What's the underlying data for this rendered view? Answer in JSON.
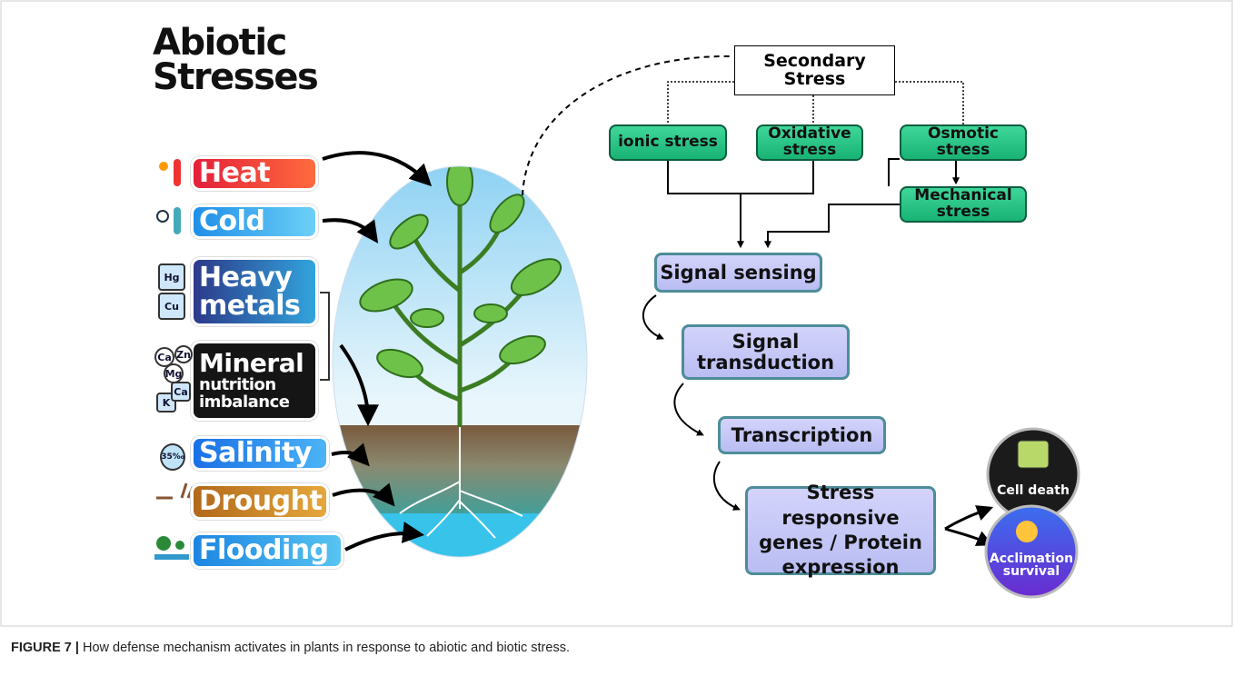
{
  "title": "Abiotic Stresses",
  "stresses": [
    {
      "label": "Heat"
    },
    {
      "label": "Cold"
    },
    {
      "label": "Heavy metals",
      "icons": [
        "Hg",
        "Cu"
      ]
    },
    {
      "label": "Mineral",
      "sublabel": "nutrition imbalance",
      "icons": [
        "Ca",
        "Zn",
        "Mg",
        "K",
        "Ca"
      ]
    },
    {
      "label": "Salinity",
      "icons": [
        "35‰"
      ]
    },
    {
      "label": "Drought"
    },
    {
      "label": "Flooding"
    }
  ],
  "secondary_stress": {
    "label": "Secondary Stress",
    "types": [
      "ionic stress",
      "Oxidative stress",
      "Osmotic stress"
    ],
    "derived": "Mechanical stress"
  },
  "pathway": [
    "Signal sensing",
    "Signal transduction",
    "Transcription",
    "Stress responsive genes / Protein expression"
  ],
  "outcomes": [
    "Cell death",
    "Acclimation survival"
  ],
  "caption": {
    "label": "FIGURE 7 |",
    "text": "How defense mechanism activates in plants in response to abiotic and biotic stress."
  }
}
